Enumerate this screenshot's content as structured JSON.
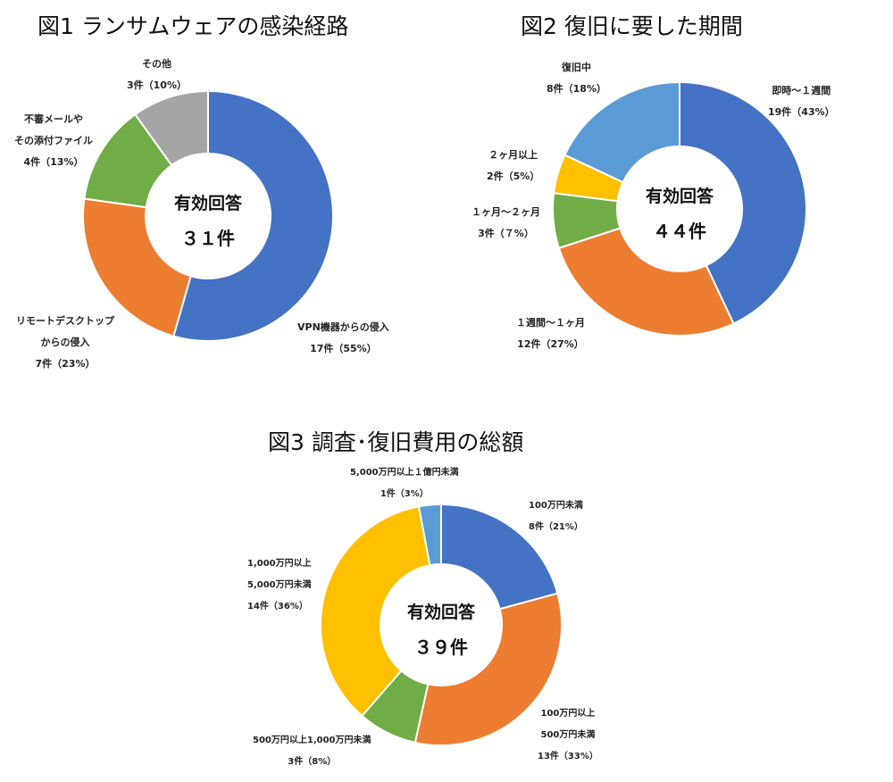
{
  "chart_data": [
    {
      "type": "pie",
      "title": "図1 ランサムウェアの感染経路",
      "center_label": "有効回答",
      "center_value": "３１件",
      "slices": [
        {
          "lines": [
            "VPN機器からの侵入"
          ],
          "count_text": "17件（55%）",
          "value": 55,
          "color": "#4472C4"
        },
        {
          "lines": [
            "リモートデスクトップ",
            "からの侵入"
          ],
          "count_text": "7件（23%）",
          "value": 23,
          "color": "#ED7D31"
        },
        {
          "lines": [
            "不審メールや",
            "その添付ファイル"
          ],
          "count_text": "4件（13%）",
          "value": 13,
          "color": "#70AD47"
        },
        {
          "lines": [
            "その他"
          ],
          "count_text": "3件（10%）",
          "value": 10,
          "color": "#A5A5A5"
        }
      ]
    },
    {
      "type": "pie",
      "title": "図2 復旧に要した期間",
      "center_label": "有効回答",
      "center_value": "４４件",
      "slices": [
        {
          "lines": [
            "即時～１週間"
          ],
          "count_text": "19件（43%）",
          "value": 43,
          "color": "#4472C4"
        },
        {
          "lines": [
            "１週間～１ヶ月"
          ],
          "count_text": "12件（27%）",
          "value": 27,
          "color": "#ED7D31"
        },
        {
          "lines": [
            "１ヶ月～２ヶ月"
          ],
          "count_text": "3件（７%）",
          "value": 7,
          "color": "#70AD47"
        },
        {
          "lines": [
            "２ヶ月以上"
          ],
          "count_text": "2件（5%）",
          "value": 5,
          "color": "#FFC000"
        },
        {
          "lines": [
            "復旧中"
          ],
          "count_text": "8件（18%）",
          "value": 18,
          "color": "#5B9BD5"
        }
      ]
    },
    {
      "type": "pie",
      "title": "図3 調査･復旧費用の総額",
      "center_label": "有効回答",
      "center_value": "３９件",
      "slices": [
        {
          "lines": [
            "100万円未満"
          ],
          "count_text": "8件（21%）",
          "value": 21,
          "color": "#4472C4"
        },
        {
          "lines": [
            "100万円以上",
            "500万円未満"
          ],
          "count_text": "13件（33%）",
          "value": 33,
          "color": "#ED7D31"
        },
        {
          "lines": [
            "500万円以上1,000万円未満"
          ],
          "count_text": "3件（8%）",
          "value": 8,
          "color": "#70AD47"
        },
        {
          "lines": [
            "1,000万円以上",
            "5,000万円未満"
          ],
          "count_text": "14件（36%）",
          "value": 36,
          "color": "#FFC000"
        },
        {
          "lines": [
            "5,000万円以上１億円未満"
          ],
          "count_text": "1件（3%）",
          "value": 3,
          "color": "#5B9BD5"
        }
      ]
    }
  ]
}
